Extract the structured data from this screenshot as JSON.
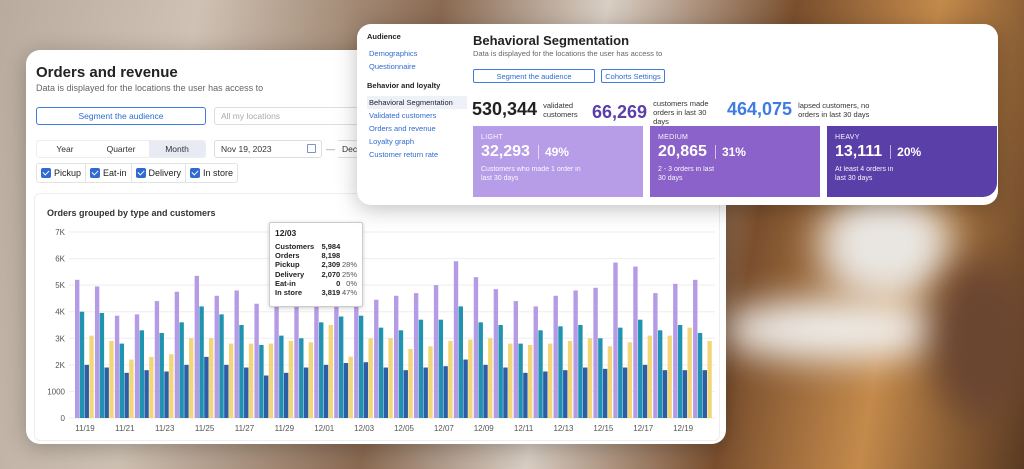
{
  "orders": {
    "title": "Orders and revenue",
    "subtitle": "Data is displayed for the locations the user has access to",
    "segment_button": "Segment the audience",
    "locations_placeholder": "All my locations",
    "periods": [
      "Year",
      "Quarter",
      "Month"
    ],
    "active_period": "Month",
    "date_from": "Nov 19, 2023",
    "date_separator": "—",
    "date_to": "Dec",
    "filters": [
      "Pickup",
      "Eat-in",
      "Delivery",
      "In store"
    ],
    "chart_title": "Orders grouped by type and customers"
  },
  "tooltip": {
    "date": "12/03",
    "rows": [
      {
        "label": "Customers",
        "value": "5,984",
        "pct": ""
      },
      {
        "label": "Orders",
        "value": "8,198",
        "pct": ""
      },
      {
        "label": "Pickup",
        "value": "2,309",
        "pct": "28%"
      },
      {
        "label": "Delivery",
        "value": "2,070",
        "pct": "25%"
      },
      {
        "label": "Eat-in",
        "value": "0",
        "pct": "0%"
      },
      {
        "label": "In store",
        "value": "3,819",
        "pct": "47%"
      }
    ]
  },
  "chart_data": {
    "type": "bar",
    "y_ticks": [
      "0",
      "1000",
      "2K",
      "3K",
      "4K",
      "5K",
      "6K",
      "7K"
    ],
    "ylim": [
      0,
      7000
    ],
    "x_labels": [
      "11/19",
      "11/21",
      "11/23",
      "11/25",
      "11/27",
      "11/29",
      "12/01",
      "12/03",
      "12/05",
      "12/07",
      "12/09",
      "12/11",
      "12/13",
      "12/15",
      "12/17",
      "12/19"
    ],
    "series_colors": [
      "#b59be6",
      "#1f93b0",
      "#2c5ea8",
      "#f2d77a"
    ],
    "groups": [
      [
        5200,
        4000,
        2000,
        3100
      ],
      [
        4950,
        3950,
        1900,
        2900
      ],
      [
        3850,
        2800,
        1700,
        2200
      ],
      [
        3900,
        3300,
        1800,
        2300
      ],
      [
        4400,
        3200,
        1750,
        2400
      ],
      [
        4750,
        3600,
        2000,
        3000
      ],
      [
        5350,
        4200,
        2300,
        3000
      ],
      [
        4600,
        3900,
        2000,
        2800
      ],
      [
        4800,
        3500,
        1900,
        2800
      ],
      [
        4300,
        2750,
        1600,
        2800
      ],
      [
        5200,
        3100,
        1700,
        2900
      ],
      [
        5100,
        3000,
        1900,
        2850
      ],
      [
        4850,
        3600,
        2000,
        3500
      ],
      [
        5984,
        3819,
        2070,
        2309
      ],
      [
        5400,
        3850,
        2100,
        3000
      ],
      [
        4450,
        3400,
        1900,
        3000
      ],
      [
        4600,
        3300,
        1800,
        2600
      ],
      [
        4700,
        3700,
        1900,
        2700
      ],
      [
        5000,
        3700,
        1950,
        2900
      ],
      [
        5900,
        4200,
        2200,
        2950
      ],
      [
        5300,
        3600,
        2000,
        3000
      ],
      [
        4850,
        3500,
        1900,
        2800
      ],
      [
        4400,
        2800,
        1700,
        2750
      ],
      [
        4200,
        3300,
        1750,
        2800
      ],
      [
        4600,
        3450,
        1800,
        2900
      ],
      [
        4800,
        3500,
        1900,
        3000
      ],
      [
        4900,
        3000,
        1850,
        2700
      ],
      [
        5850,
        3400,
        1900,
        2850
      ],
      [
        5700,
        3700,
        2000,
        3100
      ],
      [
        4700,
        3300,
        1800,
        3100
      ],
      [
        5050,
        3500,
        1800,
        3400
      ],
      [
        5200,
        3200,
        1800,
        2900
      ]
    ]
  },
  "behavioral": {
    "sidebar": [
      {
        "type": "header",
        "label": "Audience"
      },
      {
        "type": "item",
        "label": "Demographics"
      },
      {
        "type": "item",
        "label": "Questionnaire"
      },
      {
        "type": "gap"
      },
      {
        "type": "header",
        "label": "Behavior and loyalty"
      },
      {
        "type": "item",
        "label": "Behavioral Segmentation",
        "selected": true
      },
      {
        "type": "item",
        "label": "Validated customers"
      },
      {
        "type": "item",
        "label": "Orders and revenue"
      },
      {
        "type": "item",
        "label": "Loyalty graph"
      },
      {
        "type": "item",
        "label": "Customer return rate"
      }
    ],
    "title": "Behavioral Segmentation",
    "subtitle": "Data is displayed for the locations the user has access to",
    "segment_button": "Segment the audience",
    "cohorts_button": "Cohorts Settings",
    "stats": [
      {
        "number": "530,344",
        "label": "validated customers",
        "color": "#222222"
      },
      {
        "number": "66,269",
        "label": "customers made orders in last 30 days",
        "color": "#5b3fa8"
      },
      {
        "number": "464,075",
        "label": "lapsed customers, no orders in last 30 days",
        "color": "#3f7be0"
      }
    ],
    "tiles": [
      {
        "label": "LIGHT",
        "value": "32,293",
        "pct": "49%",
        "desc": "Customers who made 1 order in last 30 days",
        "color": "#b79ce8"
      },
      {
        "label": "MEDIUM",
        "value": "20,865",
        "pct": "31%",
        "desc": "2 - 3 orders in last 30 days",
        "color": "#8b62c9"
      },
      {
        "label": "HEAVY",
        "value": "13,111",
        "pct": "20%",
        "desc": "At least 4 orders in last 30 days",
        "color": "#5b3fa8"
      }
    ]
  }
}
